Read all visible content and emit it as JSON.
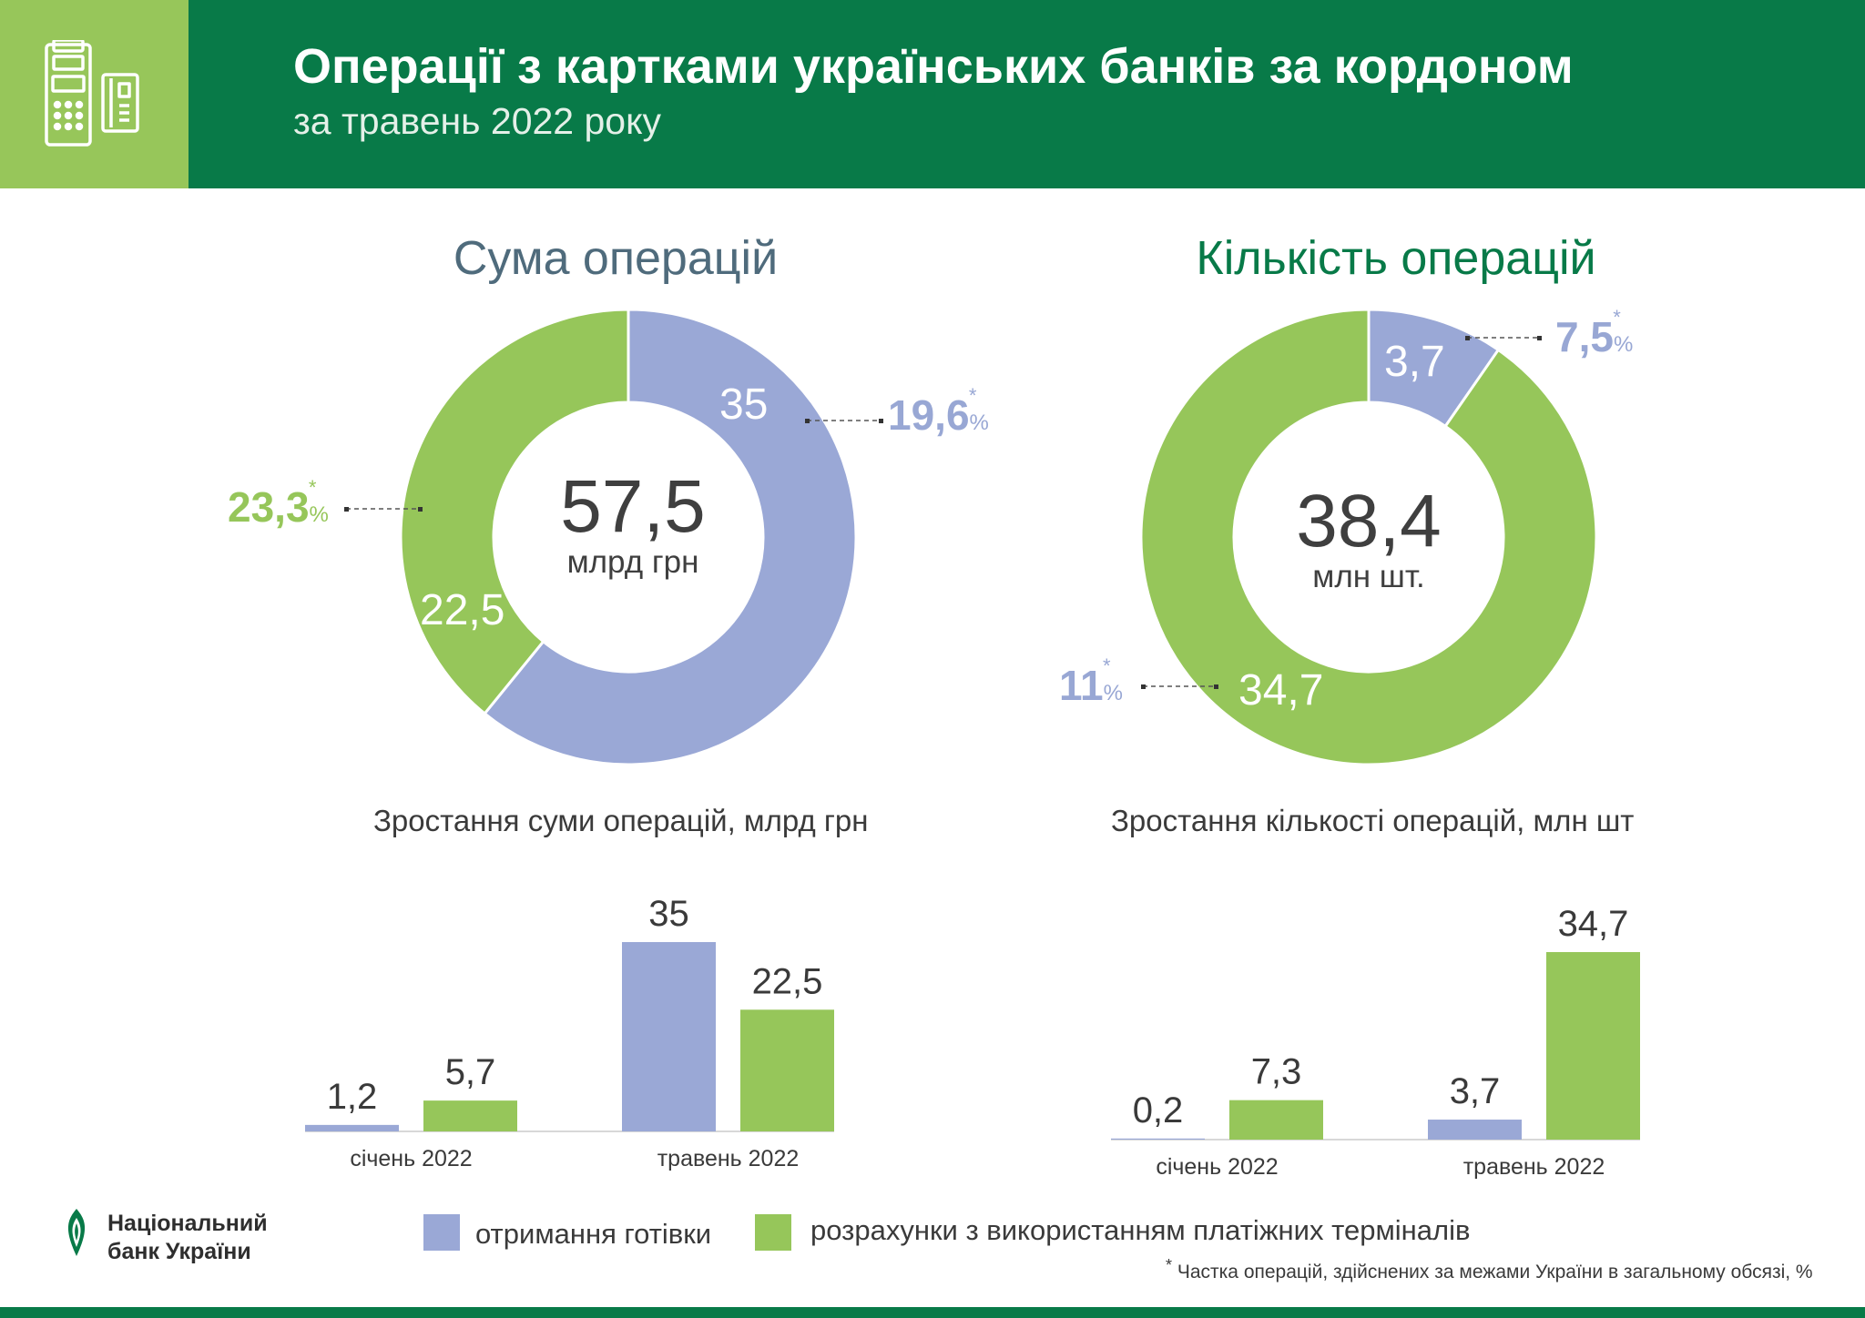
{
  "header": {
    "title": "Операції з картками українських банків за кордоном",
    "subtitle": "за травень 2022 року",
    "icon": "payment-terminal-and-card-icon"
  },
  "colors": {
    "header_bg": "#087a48",
    "icon_bg": "#97c65a",
    "cash": "#9aa8d6",
    "terminals": "#96c65a"
  },
  "legend": {
    "cash_label": "отримання готівки",
    "terminals_label": "розрахунки з використанням платіжних терміналів"
  },
  "footnote": {
    "star": "*",
    "text": "Частка операцій, здійснених за межами України в загальному обсязі, %"
  },
  "logo": {
    "line1": "Національний",
    "line2": "банк України"
  },
  "chart_data": [
    {
      "type": "donut",
      "title": "Сума операцій",
      "center_value": "57,5",
      "center_unit": "млрд грн",
      "slices": [
        {
          "name": "отримання готівки",
          "value": 35,
          "label": "35",
          "share": "19,6",
          "color": "#9aa8d6"
        },
        {
          "name": "розрахунки з використанням платіжних терміналів",
          "value": 22.5,
          "label": "22,5",
          "share": "23,3",
          "color": "#96c65a"
        }
      ],
      "share_unit": "%"
    },
    {
      "type": "donut",
      "title": "Кількість операцій",
      "center_value": "38,4",
      "center_unit": "млн шт.",
      "slices": [
        {
          "name": "отримання готівки",
          "value": 3.7,
          "label": "3,7",
          "share": "7,5",
          "color": "#9aa8d6"
        },
        {
          "name": "розрахунки з використанням платіжних терміналів",
          "value": 34.7,
          "label": "34,7",
          "share": "11",
          "color": "#96c65a"
        }
      ],
      "share_unit": "%"
    },
    {
      "type": "bar",
      "title": "Зростання суми операцій, млрд грн",
      "categories": [
        "січень 2022",
        "травень 2022"
      ],
      "series": [
        {
          "name": "отримання готівки",
          "values": [
            1.2,
            35
          ],
          "labels": [
            "1,2",
            "35"
          ],
          "color": "#9aa8d6"
        },
        {
          "name": "розрахунки з використанням платіжних терміналів",
          "values": [
            5.7,
            22.5
          ],
          "labels": [
            "5,7",
            "22,5"
          ],
          "color": "#96c65a"
        }
      ],
      "ylim": [
        0,
        35
      ]
    },
    {
      "type": "bar",
      "title": "Зростання кількості операцій, млн шт",
      "categories": [
        "січень 2022",
        "травень 2022"
      ],
      "series": [
        {
          "name": "отримання готівки",
          "values": [
            0.2,
            3.7
          ],
          "labels": [
            "0,2",
            "3,7"
          ],
          "color": "#9aa8d6"
        },
        {
          "name": "розрахунки з використанням платіжних терміналів",
          "values": [
            7.3,
            34.7
          ],
          "labels": [
            "7,3",
            "34,7"
          ],
          "color": "#96c65a"
        }
      ],
      "ylim": [
        0,
        34.7
      ]
    }
  ]
}
